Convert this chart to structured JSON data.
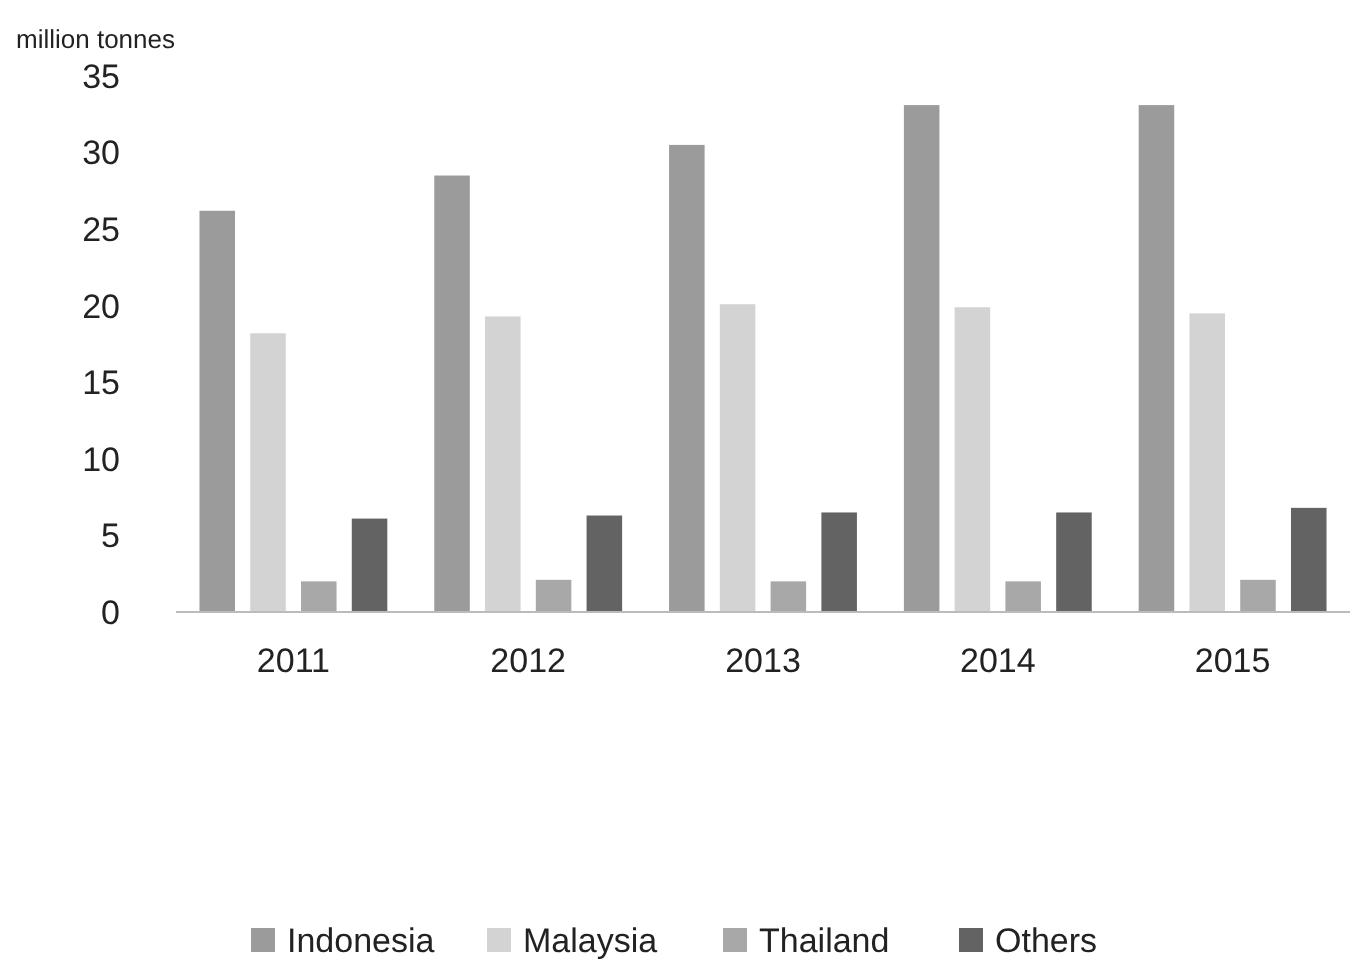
{
  "chart_data": {
    "type": "bar",
    "ylabel": "million tonnes",
    "categories": [
      "2011",
      "2012",
      "2013",
      "2014",
      "2015"
    ],
    "series": [
      {
        "name": "Indonesia",
        "color": "#9b9b9b",
        "values": [
          26.2,
          28.5,
          30.5,
          33.1,
          33.1
        ]
      },
      {
        "name": "Malaysia",
        "color": "#d3d3d3",
        "values": [
          18.2,
          19.3,
          20.1,
          19.9,
          19.5
        ]
      },
      {
        "name": "Thailand",
        "color": "#a8a8a8",
        "values": [
          2.0,
          2.1,
          2.0,
          2.0,
          2.1
        ]
      },
      {
        "name": "Others",
        "color": "#636363",
        "values": [
          6.1,
          6.3,
          6.5,
          6.5,
          6.8
        ]
      }
    ],
    "ylim": [
      0,
      35
    ],
    "yticks": [
      0,
      5,
      10,
      15,
      20,
      25,
      30,
      35
    ],
    "grid": false,
    "legend": "bottom"
  }
}
